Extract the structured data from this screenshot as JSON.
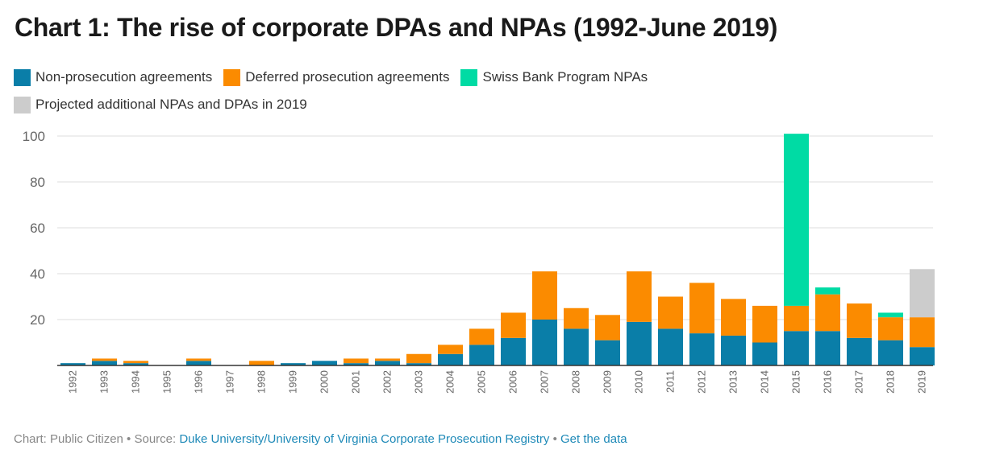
{
  "title": "Chart 1: The rise of corporate DPAs and NPAs (1992-June 2019)",
  "legend": [
    {
      "label": "Non-prosecution agreements",
      "color": "#0a7ea8"
    },
    {
      "label": "Deferred prosecution agreements",
      "color": "#fb8b00"
    },
    {
      "label": "Swiss Bank Program NPAs",
      "color": "#00dba4"
    },
    {
      "label": "Projected additional NPAs and DPAs in 2019",
      "color": "#cccccc"
    }
  ],
  "chart_data": {
    "type": "bar",
    "stacked": true,
    "title": "Chart 1: The rise of corporate DPAs and NPAs (1992-June 2019)",
    "xlabel": "",
    "ylabel": "",
    "ylim": [
      0,
      100
    ],
    "yticks": [
      20,
      40,
      60,
      80,
      100
    ],
    "grid": true,
    "legend_position": "top-left",
    "categories": [
      "1992",
      "1993",
      "1994",
      "1995",
      "1996",
      "1997",
      "1998",
      "1999",
      "2000",
      "2001",
      "2002",
      "2003",
      "2004",
      "2005",
      "2006",
      "2007",
      "2008",
      "2009",
      "2010",
      "2011",
      "2012",
      "2013",
      "2014",
      "2015",
      "2016",
      "2017",
      "2018",
      "2019"
    ],
    "series": [
      {
        "name": "Non-prosecution agreements",
        "color": "#0a7ea8",
        "values": [
          1,
          2,
          1,
          0,
          2,
          0,
          0,
          1,
          2,
          1,
          2,
          1,
          5,
          9,
          12,
          20,
          16,
          11,
          19,
          16,
          14,
          13,
          10,
          15,
          15,
          12,
          11,
          8
        ]
      },
      {
        "name": "Deferred prosecution agreements",
        "color": "#fb8b00",
        "values": [
          0,
          1,
          1,
          0,
          1,
          0,
          2,
          0,
          0,
          2,
          1,
          4,
          4,
          7,
          11,
          21,
          9,
          11,
          22,
          14,
          22,
          16,
          16,
          11,
          16,
          15,
          10,
          13
        ]
      },
      {
        "name": "Swiss Bank Program NPAs",
        "color": "#00dba4",
        "values": [
          0,
          0,
          0,
          0,
          0,
          0,
          0,
          0,
          0,
          0,
          0,
          0,
          0,
          0,
          0,
          0,
          0,
          0,
          0,
          0,
          0,
          0,
          0,
          75,
          3,
          0,
          2,
          0
        ]
      },
      {
        "name": "Projected additional NPAs and DPAs in 2019",
        "color": "#cccccc",
        "values": [
          0,
          0,
          0,
          0,
          0,
          0,
          0,
          0,
          0,
          0,
          0,
          0,
          0,
          0,
          0,
          0,
          0,
          0,
          0,
          0,
          0,
          0,
          0,
          0,
          0,
          0,
          0,
          21
        ]
      }
    ]
  },
  "footer": {
    "prefix": "Chart: Public Citizen • Source: ",
    "source_link": "Duke University/University of Virginia Corporate Prosecution Registry",
    "separator": " • ",
    "data_link": "Get the data"
  }
}
